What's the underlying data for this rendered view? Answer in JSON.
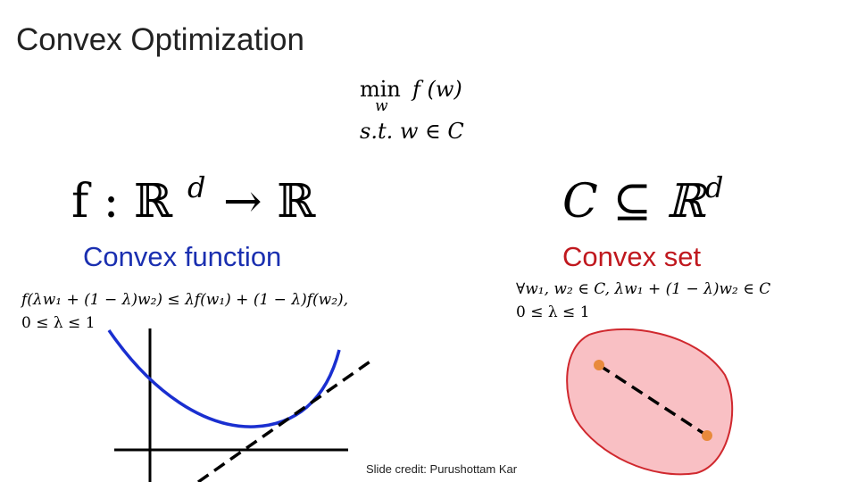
{
  "title": "Convex Optimization",
  "problem": {
    "operator": "min",
    "operator_sub": "w",
    "objective": "f (w)",
    "constraint": "s.t.   w ∈ C"
  },
  "function_side": {
    "signature_lhs": "f : ℝ",
    "signature_exp": "d",
    "signature_rhs": "→ ℝ",
    "label": "Convex function",
    "definition_line1": "f(λw₁ + (1 − λ)w₂) ≤ λf(w₁) + (1 − λ)f(w₂),",
    "definition_line2": "0 ≤ λ ≤ 1"
  },
  "set_side": {
    "signature_lhs": "C ⊆ ℝ",
    "signature_exp": "d",
    "label": "Convex set",
    "definition_line1": "∀w₁, w₂ ∈ C, λw₁ + (1 − λ)w₂ ∈ C",
    "definition_line2": "0 ≤ λ ≤ 1"
  },
  "credit": "Slide credit: Purushottam Kar"
}
